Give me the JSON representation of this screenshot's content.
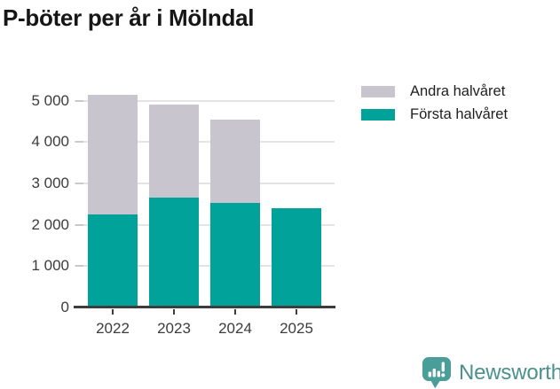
{
  "title": "P-böter per år i Mölndal",
  "chart_data": {
    "type": "bar",
    "stacked": true,
    "title": "P-böter per år i Mölndal",
    "categories": [
      "2022",
      "2023",
      "2024",
      "2025"
    ],
    "series": [
      {
        "name": "Första halvåret",
        "color": "#00a29a",
        "values": [
          2250,
          2650,
          2530,
          2390
        ]
      },
      {
        "name": "Andra halvåret",
        "color": "#c8c5ce",
        "values": [
          2880,
          2250,
          2000,
          0
        ]
      }
    ],
    "totals": [
      5130,
      4900,
      4530,
      2390
    ],
    "xlabel": "",
    "ylabel": "",
    "ylim": [
      0,
      5500
    ],
    "yticks": [
      0,
      1000,
      2000,
      3000,
      4000,
      5000
    ],
    "ytick_labels": [
      "0",
      "1 000",
      "2 000",
      "3 000",
      "4 000",
      "5 000"
    ],
    "grid": true,
    "legend_position": "top-right"
  },
  "legend": {
    "items": [
      {
        "label": "Andra halvåret",
        "color": "#c8c5ce"
      },
      {
        "label": "Första halvåret",
        "color": "#00a29a"
      }
    ]
  },
  "branding": {
    "logo_text": "Newsworthy",
    "logo_text_color": "#4a918d",
    "icon_name": "newsworthy-bubble-barchart-icon",
    "icon_color": "#4a9e99"
  },
  "colors": {
    "axis": "#3d3d3d",
    "gridline": "#e4e4e4",
    "tick_label": "#3c3c3c",
    "title": "#161616"
  }
}
